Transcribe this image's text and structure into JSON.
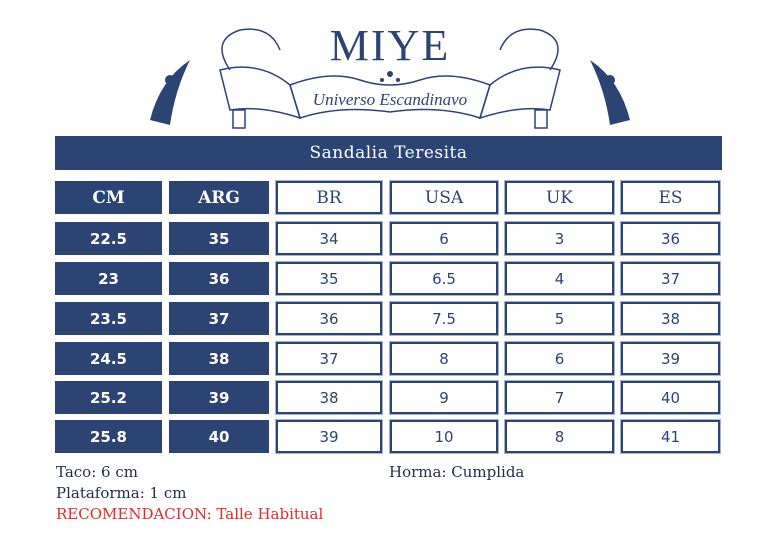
{
  "logo": {
    "brand": "MIYE",
    "tagline": "Universo Escandinavo"
  },
  "title": "Sandalia Teresita",
  "table": {
    "headers": [
      "CM",
      "ARG",
      "BR",
      "USA",
      "UK",
      "ES"
    ],
    "rows": [
      [
        "22.5",
        "35",
        "34",
        "6",
        "3",
        "36"
      ],
      [
        "23",
        "36",
        "35",
        "6.5",
        "4",
        "37"
      ],
      [
        "23.5",
        "37",
        "36",
        "7.5",
        "5",
        "38"
      ],
      [
        "24.5",
        "38",
        "37",
        "8",
        "6",
        "39"
      ],
      [
        "25.2",
        "39",
        "38",
        "9",
        "7",
        "40"
      ],
      [
        "25.8",
        "40",
        "39",
        "10",
        "8",
        "41"
      ]
    ]
  },
  "notes": {
    "taco": "Taco: 6 cm",
    "plataforma": "Plataforma: 1 cm",
    "horma": "Horma: Cumplida",
    "recomendacion": "RECOMENDACION: Talle Habitual"
  },
  "colors": {
    "primary": "#2c4474",
    "accent_red": "#e8282a"
  }
}
